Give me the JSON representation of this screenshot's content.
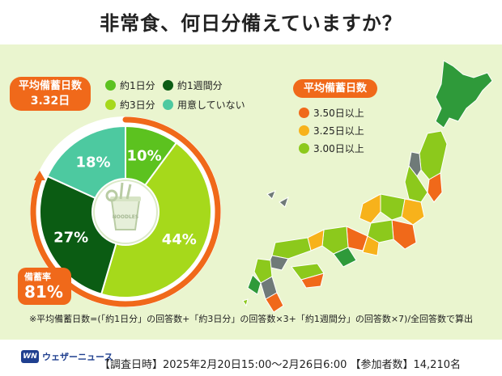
{
  "title": "非常食、何日分備えていますか？",
  "average_box": {
    "label": "平均備蓄日数",
    "value": "3.32日"
  },
  "legend": [
    {
      "label": "約1日分",
      "color": "#5cc21f"
    },
    {
      "label": "約1週間分",
      "color": "#0b5c13"
    },
    {
      "label": "約3日分",
      "color": "#a6d91b"
    },
    {
      "label": "用意していない",
      "color": "#4dc9a0"
    }
  ],
  "chart_data": {
    "type": "pie",
    "categories": [
      "約1日分",
      "約3日分",
      "約1週間分",
      "用意していない"
    ],
    "values": [
      10,
      44,
      27,
      18
    ],
    "labels": [
      "10%",
      "44%",
      "27%",
      "18%"
    ],
    "colors": [
      "#5cc21f",
      "#a6d91b",
      "#0b5c13",
      "#4dc9a0"
    ],
    "center_icon": "noodle-cup-icon",
    "center_icon_text": "NOODLES"
  },
  "stockpile_rate": {
    "label": "備蓄率",
    "value": "81%",
    "fraction": 0.81
  },
  "map_legend": {
    "title": "平均備蓄日数",
    "items": [
      {
        "label": "3.50日以上",
        "color": "#f0691a"
      },
      {
        "label": "3.25日以上",
        "color": "#f7b21b"
      },
      {
        "label": "3.00日以上",
        "color": "#8cc91c"
      }
    ],
    "other_colors": {
      "below": "#2f9a3a",
      "no_data": "#6f7a78"
    }
  },
  "footnote": "※平均備蓄日数=(「約1日分」の回答数+「約3日分」の回答数×3+「約1週間分」の回答数×7)/全回答数で算出",
  "logo": {
    "mark": "WN",
    "text": "ウェザーニュース"
  },
  "survey_info": "【調査日時】2025年2月20日15:00〜2月26日6:00 【参加者数】14,210名"
}
